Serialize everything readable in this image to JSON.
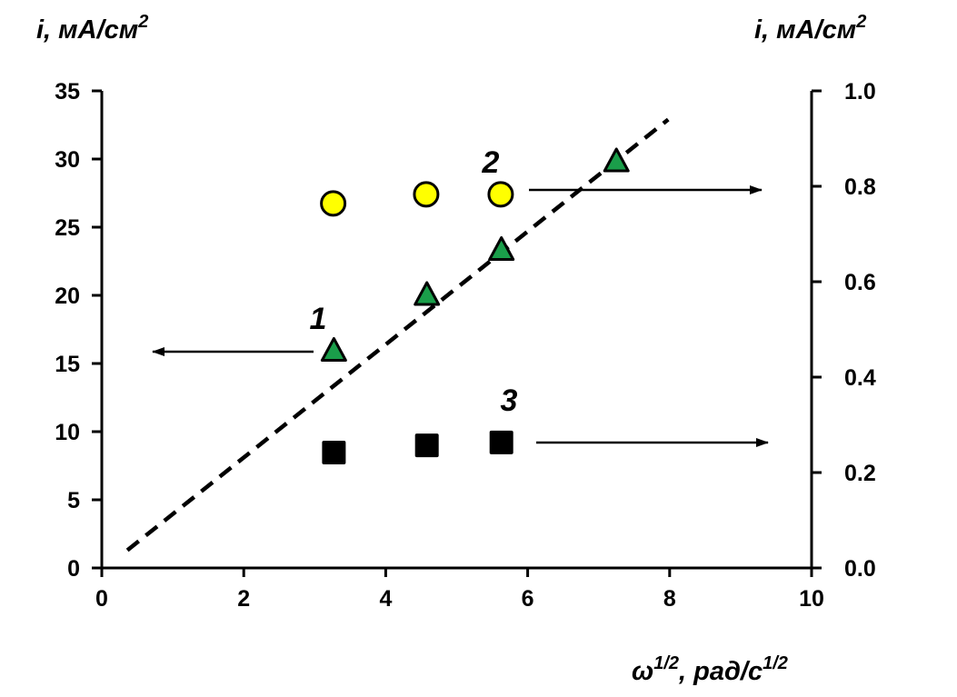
{
  "chart_data": {
    "type": "scatter",
    "title": "",
    "xlabel": {
      "main": "ω",
      "sup1": "1/2",
      "mid": ", рад/с",
      "sup2": "1/2"
    },
    "ylabel_left": {
      "main": "i, мА/см",
      "sup": "2"
    },
    "ylabel_right": {
      "main": "i, мА/см",
      "sup": "2"
    },
    "xlim": [
      0,
      10
    ],
    "ylim_left": [
      0,
      35
    ],
    "ylim_right": [
      0.0,
      1.0
    ],
    "x_ticks": [
      "0",
      "2",
      "4",
      "6",
      "8",
      "10"
    ],
    "y_left_ticks": [
      "0",
      "5",
      "10",
      "15",
      "20",
      "25",
      "30",
      "35"
    ],
    "y_right_ticks": [
      "0.0",
      "0.2",
      "0.4",
      "0.6",
      "0.8",
      "1.0"
    ],
    "grid": false,
    "series": [
      {
        "label": "1",
        "axis": "left",
        "marker": "triangle",
        "color": "#1a9e4a",
        "x": [
          3.27,
          4.58,
          5.63,
          7.25
        ],
        "y": [
          15.9,
          20.0,
          23.3,
          29.8
        ]
      },
      {
        "label": "2",
        "axis": "right",
        "marker": "circle",
        "color": "#ffff00",
        "x": [
          3.26,
          4.57,
          5.62
        ],
        "y": [
          0.764,
          0.783,
          0.783
        ]
      },
      {
        "label": "3",
        "axis": "right",
        "marker": "square",
        "color": "#000000",
        "x": [
          3.27,
          4.58,
          5.63
        ],
        "y": [
          0.242,
          0.257,
          0.263
        ]
      }
    ],
    "fit_line": {
      "style": "dashed",
      "axis": "left",
      "x": [
        0.36,
        7.98
      ],
      "y": [
        1.3,
        32.9
      ]
    }
  }
}
